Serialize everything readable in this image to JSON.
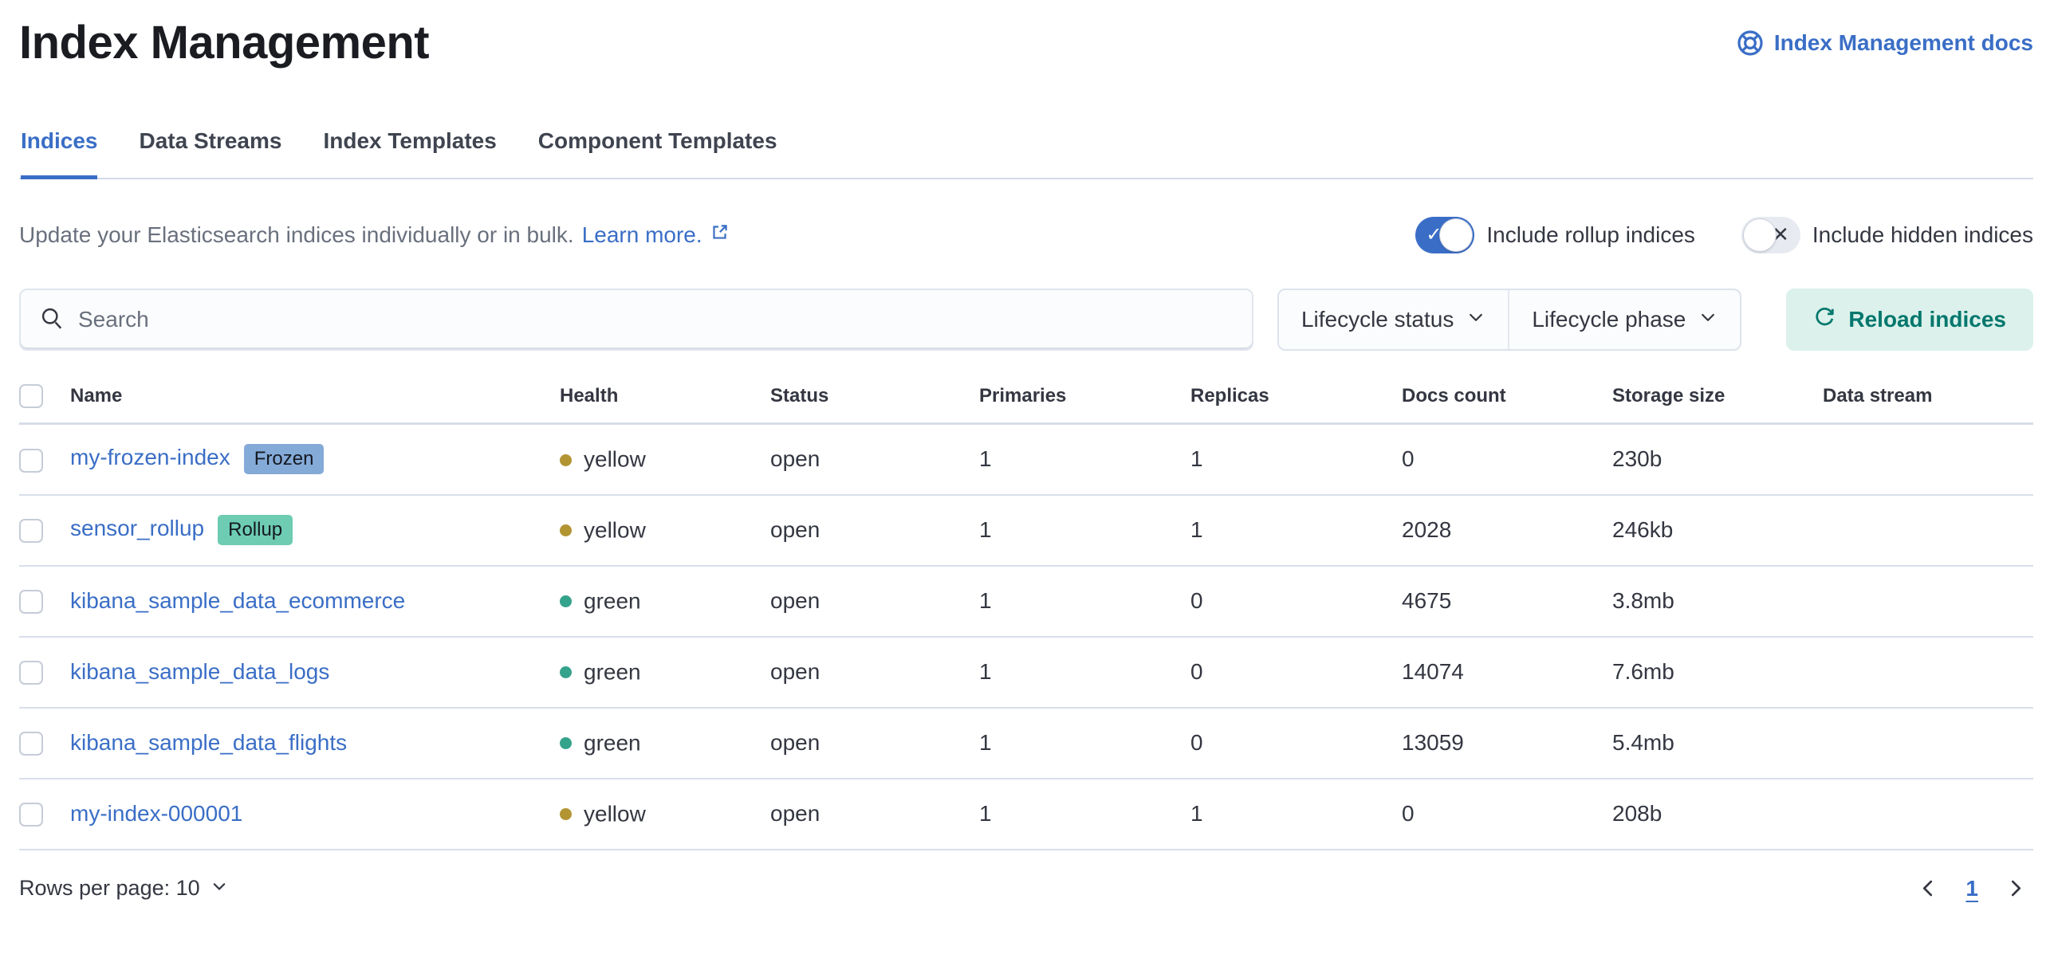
{
  "page_title": "Index Management",
  "header": {
    "docs_link_label": "Index Management docs"
  },
  "tabs": [
    {
      "label": "Indices",
      "active": true
    },
    {
      "label": "Data Streams",
      "active": false
    },
    {
      "label": "Index Templates",
      "active": false
    },
    {
      "label": "Component Templates",
      "active": false
    }
  ],
  "description": {
    "text": "Update your Elasticsearch indices individually or in bulk.",
    "link_label": "Learn more."
  },
  "toggles": [
    {
      "label": "Include rollup indices",
      "on": true
    },
    {
      "label": "Include hidden indices",
      "on": false
    }
  ],
  "controls": {
    "search_placeholder": "Search",
    "filters": [
      "Lifecycle status",
      "Lifecycle phase"
    ],
    "reload_label": "Reload indices"
  },
  "table": {
    "columns": [
      "Name",
      "Health",
      "Status",
      "Primaries",
      "Replicas",
      "Docs count",
      "Storage size",
      "Data stream"
    ],
    "rows": [
      {
        "name": "my-frozen-index",
        "badge": {
          "label": "Frozen",
          "bg": "#84aad8"
        },
        "health": "yellow",
        "status": "open",
        "primaries": "1",
        "replicas": "1",
        "docs_count": "0",
        "storage_size": "230b",
        "data_stream": ""
      },
      {
        "name": "sensor_rollup",
        "badge": {
          "label": "Rollup",
          "bg": "#6dccb1"
        },
        "health": "yellow",
        "status": "open",
        "primaries": "1",
        "replicas": "1",
        "docs_count": "2028",
        "storage_size": "246kb",
        "data_stream": ""
      },
      {
        "name": "kibana_sample_data_ecommerce",
        "badge": null,
        "health": "green",
        "status": "open",
        "primaries": "1",
        "replicas": "0",
        "docs_count": "4675",
        "storage_size": "3.8mb",
        "data_stream": ""
      },
      {
        "name": "kibana_sample_data_logs",
        "badge": null,
        "health": "green",
        "status": "open",
        "primaries": "1",
        "replicas": "0",
        "docs_count": "14074",
        "storage_size": "7.6mb",
        "data_stream": ""
      },
      {
        "name": "kibana_sample_data_flights",
        "badge": null,
        "health": "green",
        "status": "open",
        "primaries": "1",
        "replicas": "0",
        "docs_count": "13059",
        "storage_size": "5.4mb",
        "data_stream": ""
      },
      {
        "name": "my-index-000001",
        "badge": null,
        "health": "yellow",
        "status": "open",
        "primaries": "1",
        "replicas": "1",
        "docs_count": "0",
        "storage_size": "208b",
        "data_stream": ""
      }
    ]
  },
  "footer": {
    "rows_per_page_label": "Rows per page: 10",
    "current_page": "1"
  },
  "colors": {
    "accent_blue": "#3a6ec6",
    "title_text": "#1a1c21",
    "body_text": "#343741",
    "muted_text": "#69707d",
    "border": "#d3dae6",
    "health_yellow": "#b39433",
    "health_green": "#35a28c",
    "badge_frozen_bg": "#84aad8",
    "badge_rollup_bg": "#6dccb1",
    "reload_button_bg": "#dcf1eb",
    "reload_button_text": "#01776d",
    "toggle_on_bg": "#3a6ec6",
    "toggle_off_bg": "#e7ebf1"
  }
}
